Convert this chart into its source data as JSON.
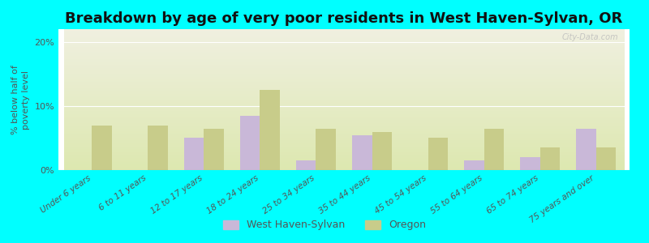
{
  "title": "Breakdown by age of very poor residents in West Haven-Sylvan, OR",
  "ylabel": "% below half of\npoverty level",
  "categories": [
    "Under 6 years",
    "6 to 11 years",
    "12 to 17 years",
    "18 to 24 years",
    "25 to 34 years",
    "35 to 44 years",
    "45 to 54 years",
    "55 to 64 years",
    "65 to 74 years",
    "75 years and over"
  ],
  "west_haven_values": [
    0,
    0,
    5.0,
    8.5,
    1.5,
    5.5,
    0,
    1.5,
    2.0,
    6.5
  ],
  "oregon_values": [
    7.0,
    7.0,
    6.5,
    12.5,
    6.5,
    6.0,
    5.0,
    6.5,
    3.5,
    3.5
  ],
  "west_haven_color": "#c9b8d8",
  "oregon_color": "#c8cc8a",
  "background_color": "#00ffff",
  "plot_bg_gradient_top": "#f0f0e0",
  "plot_bg_gradient_bottom": "#dde8b0",
  "title_fontsize": 13,
  "ylabel_fontsize": 8,
  "ylim": [
    0,
    22
  ],
  "yticks": [
    0,
    10,
    20
  ],
  "ytick_labels": [
    "0%",
    "10%",
    "20%"
  ],
  "bar_width": 0.35,
  "legend_labels": [
    "West Haven-Sylvan",
    "Oregon"
  ]
}
